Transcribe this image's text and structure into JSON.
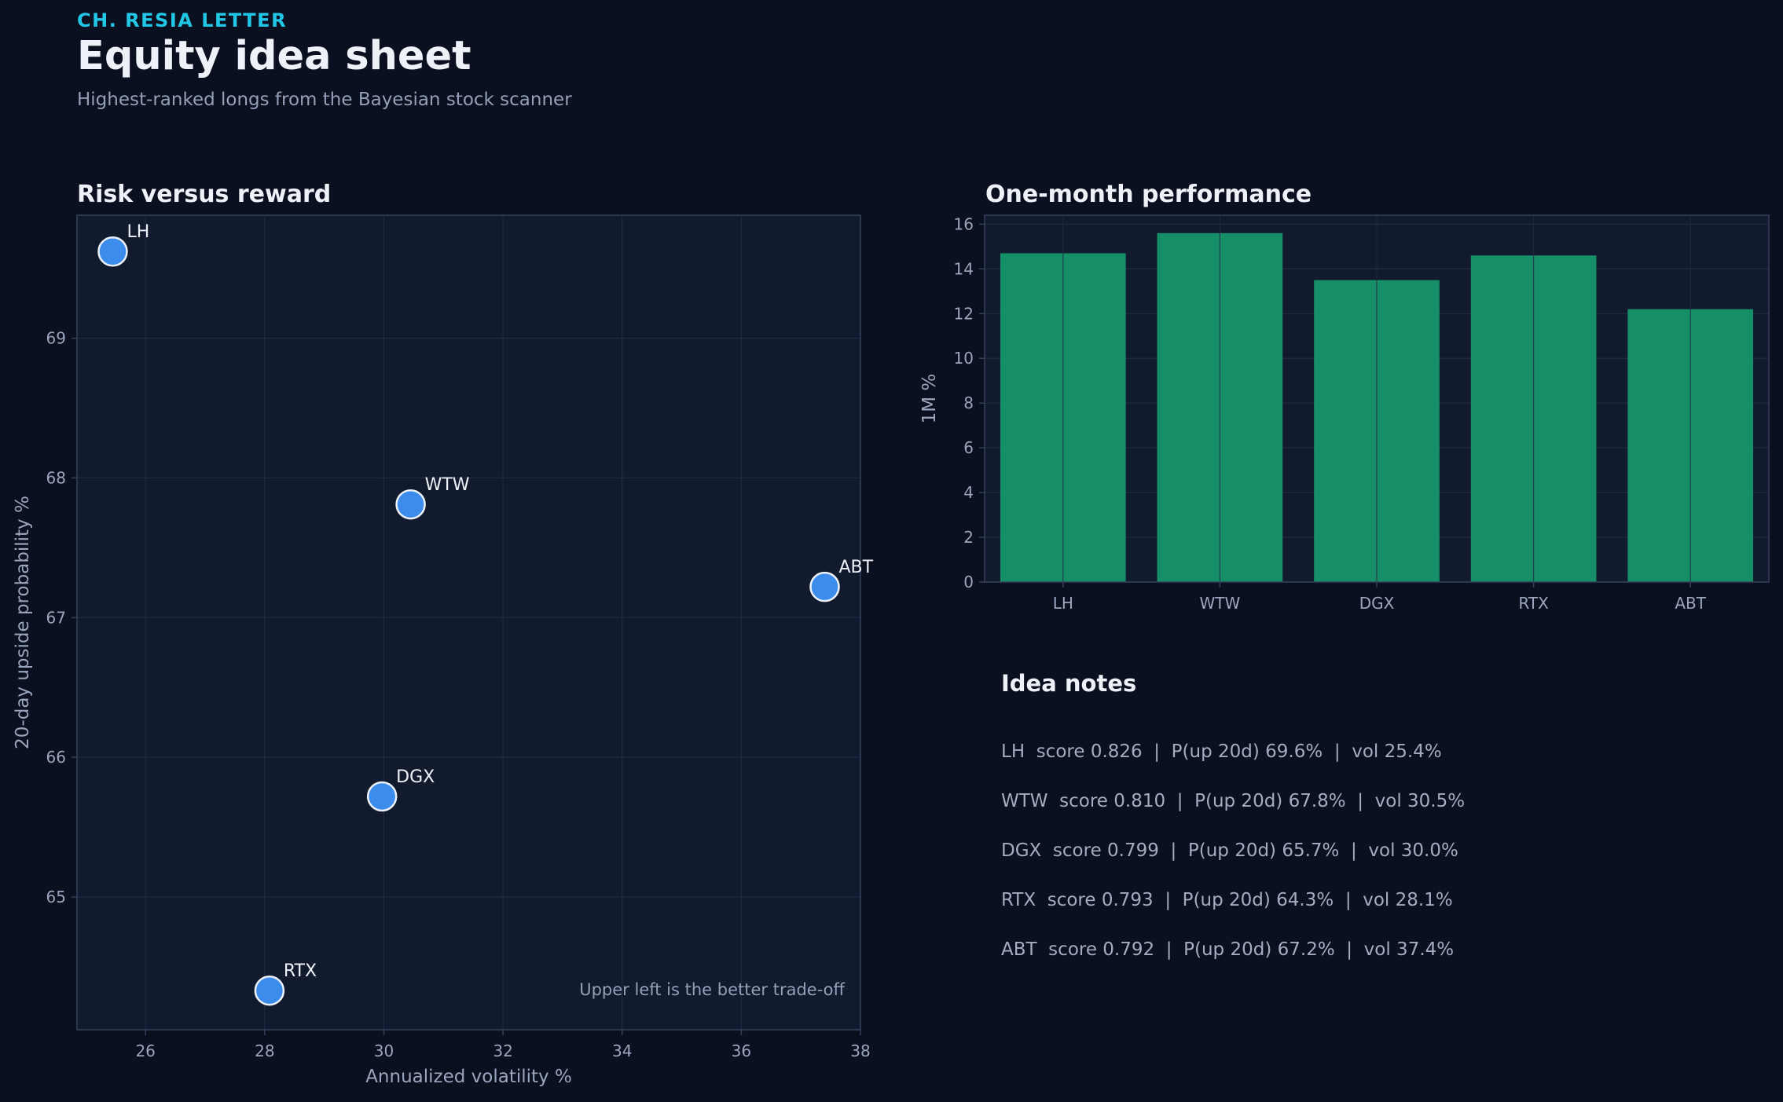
{
  "header": {
    "eyebrow": "CH. RESIA LETTER",
    "title": "Equity idea sheet",
    "subtitle": "Highest-ranked longs from the Bayesian stock scanner"
  },
  "colors": {
    "background": "#0b1020",
    "panel": "#121a2e",
    "accent": "#22c7e6",
    "point": "#3b8ceb",
    "bar": "#168f69"
  },
  "chart_data": [
    {
      "type": "scatter",
      "title": "Risk versus reward",
      "xlabel": "Annualized volatility %",
      "ylabel": "20-day upside probability %",
      "xlim": [
        24.85,
        38.0
      ],
      "ylim": [
        64.05,
        69.88
      ],
      "xticks": [
        26,
        28,
        30,
        32,
        34,
        36,
        38
      ],
      "yticks": [
        65,
        66,
        67,
        68,
        69
      ],
      "grid": true,
      "annotation": "Upper left is the better trade-off",
      "points": [
        {
          "label": "LH",
          "x": 25.45,
          "y": 69.62
        },
        {
          "label": "WTW",
          "x": 30.45,
          "y": 67.81
        },
        {
          "label": "ABT",
          "x": 37.4,
          "y": 67.22
        },
        {
          "label": "DGX",
          "x": 29.97,
          "y": 65.72
        },
        {
          "label": "RTX",
          "x": 28.08,
          "y": 64.33
        }
      ]
    },
    {
      "type": "bar",
      "title": "One-month performance",
      "xlabel": "",
      "ylabel": "1M %",
      "categories": [
        "LH",
        "WTW",
        "DGX",
        "RTX",
        "ABT"
      ],
      "values": [
        14.7,
        15.6,
        13.5,
        14.6,
        12.2
      ],
      "ylim": [
        0,
        16.4
      ],
      "yticks": [
        0,
        2,
        4,
        6,
        8,
        10,
        12,
        14,
        16
      ],
      "grid": true
    }
  ],
  "notes": {
    "title": "Idea notes",
    "lines": [
      "LH  score 0.826  |  P(up 20d) 69.6%  |  vol 25.4%",
      "WTW  score 0.810  |  P(up 20d) 67.8%  |  vol 30.5%",
      "DGX  score 0.799  |  P(up 20d) 65.7%  |  vol 30.0%",
      "RTX  score 0.793  |  P(up 20d) 64.3%  |  vol 28.1%",
      "ABT  score 0.792  |  P(up 20d) 67.2%  |  vol 37.4%"
    ]
  }
}
